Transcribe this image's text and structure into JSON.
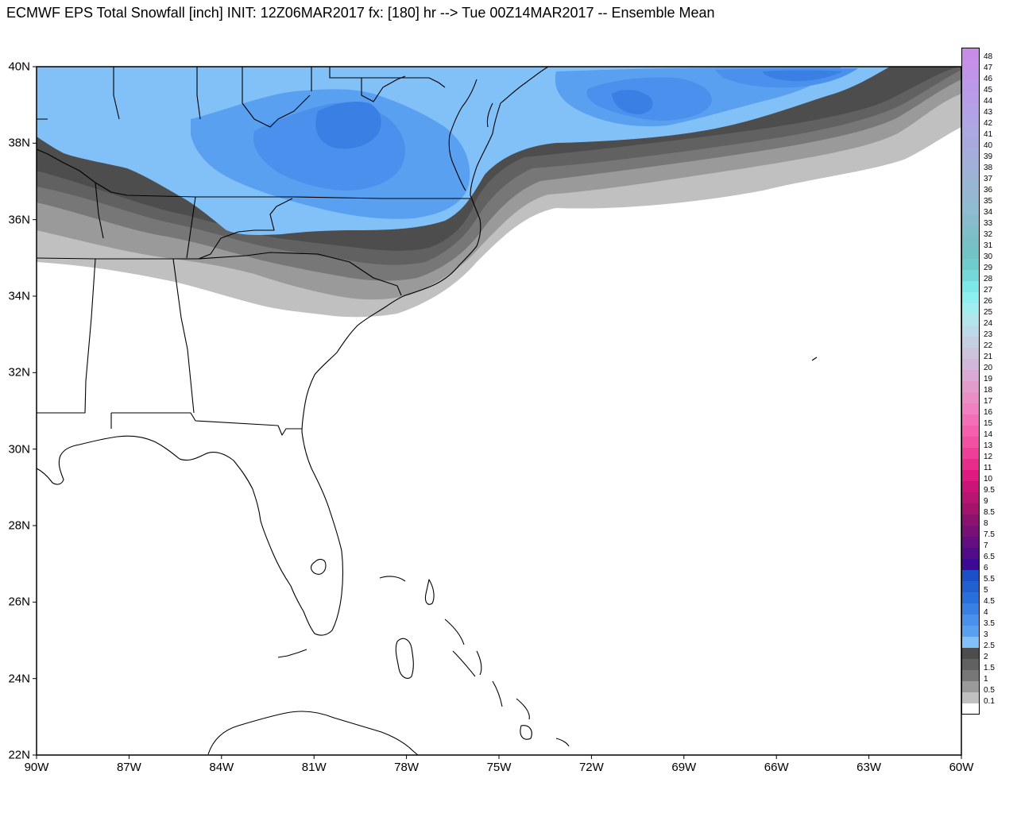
{
  "title": "ECMWF EPS Total Snowfall [inch] INIT: 12Z06MAR2017 fx: [180] hr --> Tue 00Z14MAR2017 -- Ensemble Mean",
  "map": {
    "extent": {
      "lon_min": -90,
      "lon_max": -60,
      "lat_min": 22,
      "lat_max": 40
    },
    "lat_ticks": [
      {
        "value": 40,
        "label": "40N"
      },
      {
        "value": 38,
        "label": "38N"
      },
      {
        "value": 36,
        "label": "36N"
      },
      {
        "value": 34,
        "label": "34N"
      },
      {
        "value": 32,
        "label": "32N"
      },
      {
        "value": 30,
        "label": "30N"
      },
      {
        "value": 28,
        "label": "28N"
      },
      {
        "value": 26,
        "label": "26N"
      },
      {
        "value": 24,
        "label": "24N"
      },
      {
        "value": 22,
        "label": "22N"
      }
    ],
    "lon_ticks": [
      {
        "value": -90,
        "label": "90W"
      },
      {
        "value": -87,
        "label": "87W"
      },
      {
        "value": -84,
        "label": "84W"
      },
      {
        "value": -81,
        "label": "81W"
      },
      {
        "value": -78,
        "label": "78W"
      },
      {
        "value": -75,
        "label": "75W"
      },
      {
        "value": -72,
        "label": "72W"
      },
      {
        "value": -69,
        "label": "69W"
      },
      {
        "value": -66,
        "label": "66W"
      },
      {
        "value": -63,
        "label": "63W"
      },
      {
        "value": -60,
        "label": "60W"
      }
    ]
  },
  "legend": {
    "levels": [
      {
        "label": "48",
        "color": "#c88ce8"
      },
      {
        "label": "47",
        "color": "#c490e8"
      },
      {
        "label": "46",
        "color": "#c094e8"
      },
      {
        "label": "45",
        "color": "#bc98e8"
      },
      {
        "label": "44",
        "color": "#b89ce8"
      },
      {
        "label": "43",
        "color": "#b4a0e6"
      },
      {
        "label": "42",
        "color": "#b0a4e4"
      },
      {
        "label": "41",
        "color": "#aca8e2"
      },
      {
        "label": "40",
        "color": "#a8aade"
      },
      {
        "label": "39",
        "color": "#a4addb"
      },
      {
        "label": "38",
        "color": "#a0b0d8"
      },
      {
        "label": "37",
        "color": "#9cb3d6"
      },
      {
        "label": "36",
        "color": "#98b6d4"
      },
      {
        "label": "35",
        "color": "#94b8d2"
      },
      {
        "label": "34",
        "color": "#90bbd0"
      },
      {
        "label": "33",
        "color": "#88bccc"
      },
      {
        "label": "32",
        "color": "#80bec8"
      },
      {
        "label": "31",
        "color": "#78c0c6"
      },
      {
        "label": "30",
        "color": "#72c4c4"
      },
      {
        "label": "29",
        "color": "#70cccc"
      },
      {
        "label": "28",
        "color": "#74d8d8"
      },
      {
        "label": "27",
        "color": "#7ce8e8"
      },
      {
        "label": "26",
        "color": "#8cf0f0"
      },
      {
        "label": "25",
        "color": "#a0eeee"
      },
      {
        "label": "24",
        "color": "#b2e6ec"
      },
      {
        "label": "23",
        "color": "#bcdaea"
      },
      {
        "label": "22",
        "color": "#c4d0e2"
      },
      {
        "label": "21",
        "color": "#ccc4dc"
      },
      {
        "label": "20",
        "color": "#d2b8d8"
      },
      {
        "label": "19",
        "color": "#daaad4"
      },
      {
        "label": "18",
        "color": "#e29ccc"
      },
      {
        "label": "17",
        "color": "#ea8ec6"
      },
      {
        "label": "16",
        "color": "#f080c0"
      },
      {
        "label": "15",
        "color": "#f470b6"
      },
      {
        "label": "14",
        "color": "#f460ac"
      },
      {
        "label": "13",
        "color": "#f250a2"
      },
      {
        "label": "12",
        "color": "#ee3e98"
      },
      {
        "label": "11",
        "color": "#e82c8c"
      },
      {
        "label": "10",
        "color": "#de1a80"
      },
      {
        "label": "9.5",
        "color": "#cc1478"
      },
      {
        "label": "9",
        "color": "#b81472"
      },
      {
        "label": "8.5",
        "color": "#a4146c"
      },
      {
        "label": "8",
        "color": "#8c1270"
      },
      {
        "label": "7.5",
        "color": "#781076"
      },
      {
        "label": "7",
        "color": "#640e80"
      },
      {
        "label": "6.5",
        "color": "#520c8a"
      },
      {
        "label": "6",
        "color": "#3c0a94"
      },
      {
        "label": "5.5",
        "color": "#1c50c8"
      },
      {
        "label": "5",
        "color": "#2060d0"
      },
      {
        "label": "4.5",
        "color": "#2a70dc"
      },
      {
        "label": "4",
        "color": "#3a80e4"
      },
      {
        "label": "3.5",
        "color": "#4a90ec"
      },
      {
        "label": "3",
        "color": "#5aa0f0"
      },
      {
        "label": "2.5",
        "color": "#82c0f8"
      },
      {
        "label": "2",
        "color": "#4d4d4d"
      },
      {
        "label": "1.5",
        "color": "#616161"
      },
      {
        "label": "1",
        "color": "#777777"
      },
      {
        "label": "0.5",
        "color": "#9a9a9a"
      },
      {
        "label": "0.1",
        "color": "#c0c0c0"
      },
      {
        "label": "",
        "color": "#ffffff"
      }
    ]
  }
}
